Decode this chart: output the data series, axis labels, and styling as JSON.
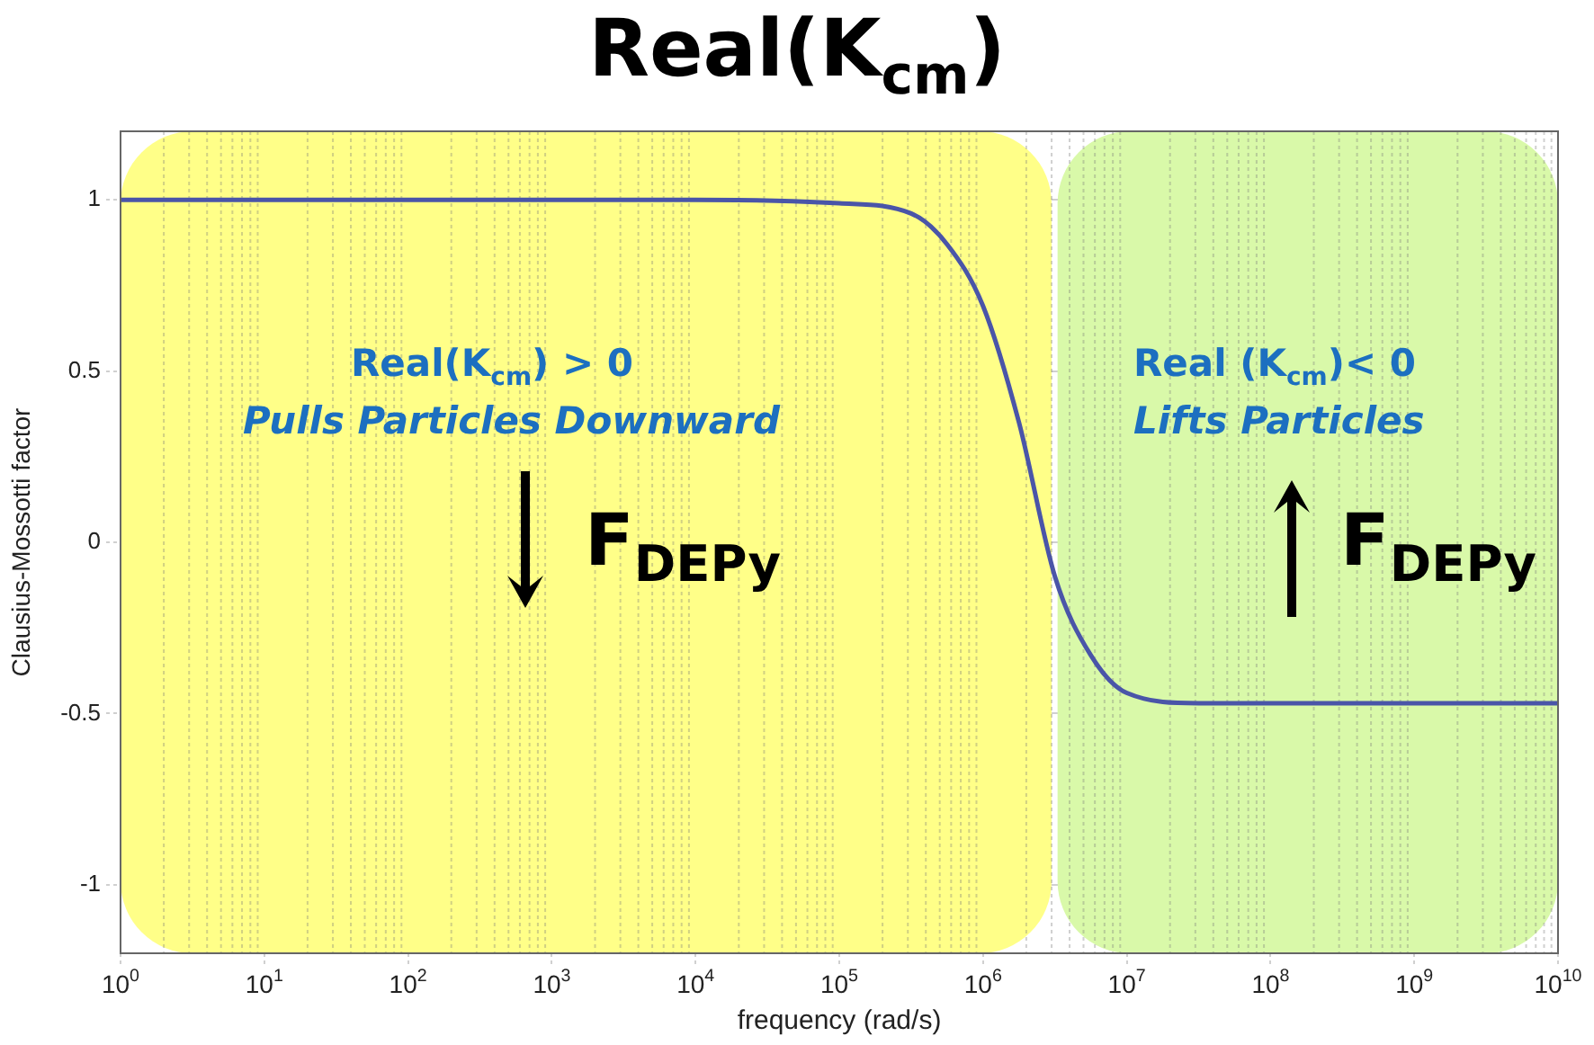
{
  "chart_data": {
    "type": "line",
    "title": "Real(K$_{cm}$)",
    "xlabel": "frequency (rad/s)",
    "ylabel": "Clausius-Mossotti factor",
    "x": [
      1,
      10000,
      100000,
      316228,
      562341,
      1000000,
      1778279,
      3162278,
      5623413,
      10000000,
      31622777,
      100000000,
      10000000000
    ],
    "series": [
      {
        "color": "#4a55a8",
        "values": [
          1,
          1,
          0.99,
          0.96,
          0.87,
          0.69,
          0.35,
          -0.1,
          -0.33,
          -0.44,
          -0.47,
          -0.47,
          -0.47
        ]
      }
    ],
    "log": "x",
    "xlim": [
      1,
      10000000000
    ],
    "xticks": [
      {
        "value": 1,
        "label": "10$^{0}$"
      },
      {
        "value": 10,
        "label": "10$^{1}$"
      },
      {
        "value": 100,
        "label": "10$^{2}$"
      },
      {
        "value": 1000,
        "label": "10$^{3}$"
      },
      {
        "value": 10000,
        "label": "10$^{4}$"
      },
      {
        "value": 100000,
        "label": "10$^{5}$"
      },
      {
        "value": 1000000,
        "label": "10$^{6}$"
      },
      {
        "value": 10000000,
        "label": "10$^{7}$"
      },
      {
        "value": 100000000,
        "label": "10$^{8}$"
      },
      {
        "value": 1000000000,
        "label": "10$^{9}$"
      },
      {
        "value": 10000000000,
        "label": "10$^{10}$"
      }
    ],
    "ylim": [
      -1.2,
      1.2
    ],
    "yticks": [
      -1,
      -0.5,
      0,
      0.5,
      1
    ],
    "bands": [
      {
        "axis": "x",
        "from": 1,
        "to": 3000000,
        "color": "#ffff88",
        "label": "Real(K$_{cm}$) > 0"
      },
      {
        "axis": "x",
        "from": 3300000,
        "to": 10000000000,
        "color": "#d9f9a9",
        "label": "Real (K$_{cm}$)< 0"
      }
    ],
    "annotations": [
      "Pulls Particles Downward",
      "F$_{DEPy}$",
      "Lifts Particles",
      "F$_{DEPy}$"
    ],
    "grid": true,
    "marker": "none",
    "line_style": "solid",
    "legend": false
  }
}
